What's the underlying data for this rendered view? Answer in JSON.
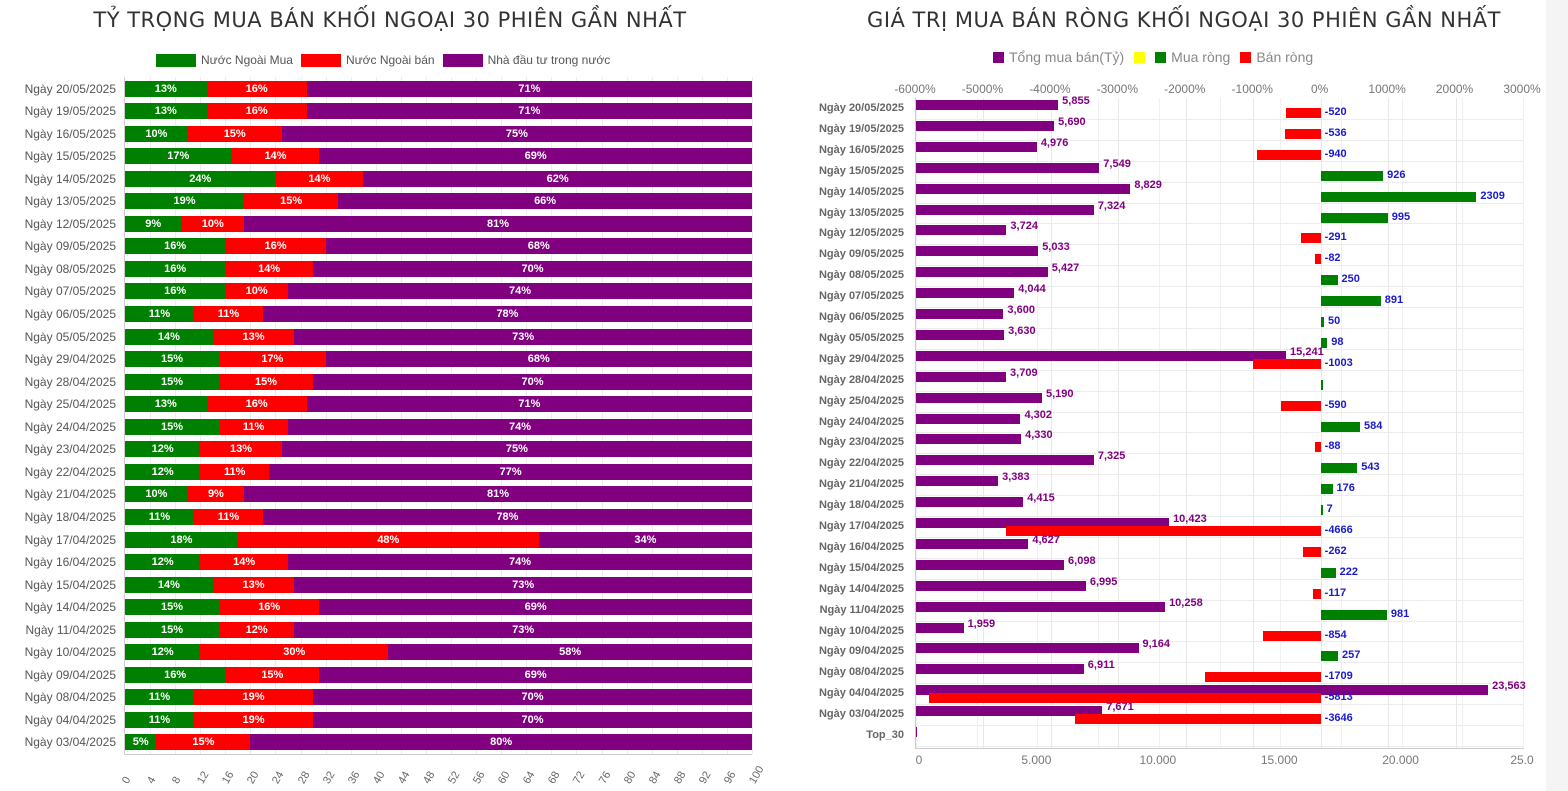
{
  "left_chart": {
    "title": "TỶ TRỌNG MUA BÁN KHỐI NGOẠI 30 PHIÊN GẦN NHẤT",
    "legend": [
      {
        "label": "Nước Ngoài Mua",
        "color": "#008000"
      },
      {
        "label": "Nước Ngoài bán",
        "color": "#ff0000"
      },
      {
        "label": "Nhà đầu tư trong nước",
        "color": "#800080"
      }
    ],
    "x_ticks": [
      "0",
      "4",
      "8",
      "12",
      "16",
      "20",
      "24",
      "28",
      "32",
      "36",
      "40",
      "44",
      "48",
      "52",
      "56",
      "60",
      "64",
      "68",
      "72",
      "76",
      "80",
      "84",
      "88",
      "92",
      "96",
      "100"
    ]
  },
  "right_chart": {
    "title": "GIÁ TRỊ MUA BÁN RÒNG KHỐI NGOẠI 30 PHIÊN GẦN NHẤT",
    "legend": [
      {
        "label": "Tổng mua bán(Tỷ)",
        "color": "#800080"
      },
      {
        "label": "",
        "color": "#ffff00"
      },
      {
        "label": "Mua ròng",
        "color": "#008000"
      },
      {
        "label": "Bán ròng",
        "color": "#ff0000"
      }
    ],
    "top_ticks": [
      "-6000%",
      "-5000%",
      "-4000%",
      "-3000%",
      "-2000%",
      "-1000%",
      "0%",
      "1000%",
      "2000%",
      "3000%"
    ],
    "bottom_ticks": [
      "0",
      "5.000",
      "10.000",
      "15.000",
      "20.000",
      "25.0"
    ],
    "extra_category": "Top_30"
  },
  "chart_data": [
    {
      "type": "bar",
      "orientation": "horizontal",
      "stacked": true,
      "title": "TỶ TRỌNG MUA BÁN KHỐI NGOẠI 30 PHIÊN GẦN NHẤT",
      "xlabel": "",
      "ylabel": "",
      "xlim": [
        0,
        100
      ],
      "legend_position": "top",
      "categories": [
        "Ngày 20/05/2025",
        "Ngày 19/05/2025",
        "Ngày 16/05/2025",
        "Ngày 15/05/2025",
        "Ngày 14/05/2025",
        "Ngày 13/05/2025",
        "Ngày 12/05/2025",
        "Ngày 09/05/2025",
        "Ngày 08/05/2025",
        "Ngày 07/05/2025",
        "Ngày 06/05/2025",
        "Ngày 05/05/2025",
        "Ngày 29/04/2025",
        "Ngày 28/04/2025",
        "Ngày 25/04/2025",
        "Ngày 24/04/2025",
        "Ngày 23/04/2025",
        "Ngày 22/04/2025",
        "Ngày 21/04/2025",
        "Ngày 18/04/2025",
        "Ngày 17/04/2025",
        "Ngày 16/04/2025",
        "Ngày 15/04/2025",
        "Ngày 14/04/2025",
        "Ngày 11/04/2025",
        "Ngày 10/04/2025",
        "Ngày 09/04/2025",
        "Ngày 08/04/2025",
        "Ngày 04/04/2025",
        "Ngày 03/04/2025"
      ],
      "series": [
        {
          "name": "Nước Ngoài Mua",
          "color": "#008000",
          "values": [
            13,
            13,
            10,
            17,
            24,
            19,
            9,
            16,
            16,
            16,
            11,
            14,
            15,
            15,
            13,
            15,
            12,
            12,
            10,
            11,
            18,
            12,
            14,
            15,
            15,
            12,
            16,
            11,
            11,
            5
          ]
        },
        {
          "name": "Nước Ngoài bán",
          "color": "#ff0000",
          "values": [
            16,
            16,
            15,
            14,
            14,
            15,
            10,
            16,
            14,
            10,
            11,
            13,
            17,
            15,
            16,
            11,
            13,
            11,
            9,
            11,
            48,
            14,
            13,
            16,
            12,
            30,
            15,
            19,
            19,
            15
          ]
        },
        {
          "name": "Nhà đầu tư trong nước",
          "color": "#800080",
          "values": [
            71,
            71,
            75,
            69,
            62,
            66,
            81,
            68,
            70,
            74,
            78,
            73,
            68,
            70,
            71,
            74,
            75,
            77,
            81,
            78,
            34,
            74,
            73,
            69,
            73,
            58,
            69,
            70,
            70,
            80
          ]
        }
      ]
    },
    {
      "type": "bar",
      "orientation": "horizontal",
      "title": "GIÁ TRỊ MUA BÁN RÒNG KHỐI NGOẠI 30 PHIÊN GẦN NHẤT",
      "xlabel": "",
      "ylabel": "",
      "xlim_bottom": [
        0,
        25000
      ],
      "xlim_top_percent": [
        -6000,
        3000
      ],
      "legend_position": "top",
      "categories": [
        "Ngày 20/05/2025",
        "Ngày 19/05/2025",
        "Ngày 16/05/2025",
        "Ngày 15/05/2025",
        "Ngày 14/05/2025",
        "Ngày 13/05/2025",
        "Ngày 12/05/2025",
        "Ngày 09/05/2025",
        "Ngày 08/05/2025",
        "Ngày 07/05/2025",
        "Ngày 06/05/2025",
        "Ngày 05/05/2025",
        "Ngày 29/04/2025",
        "Ngày 28/04/2025",
        "Ngày 25/04/2025",
        "Ngày 24/04/2025",
        "Ngày 23/04/2025",
        "Ngày 22/04/2025",
        "Ngày 21/04/2025",
        "Ngày 18/04/2025",
        "Ngày 17/04/2025",
        "Ngày 16/04/2025",
        "Ngày 15/04/2025",
        "Ngày 14/04/2025",
        "Ngày 11/04/2025",
        "Ngày 10/04/2025",
        "Ngày 09/04/2025",
        "Ngày 08/04/2025",
        "Ngày 04/04/2025",
        "Ngày 03/04/2025",
        "Top_30"
      ],
      "series": [
        {
          "name": "Tổng mua bán(Tỷ)",
          "color": "#800080",
          "values": [
            5855,
            5690,
            4976,
            7549,
            8829,
            7324,
            3724,
            5033,
            5427,
            4044,
            3600,
            3630,
            15241,
            3709,
            5190,
            4302,
            4330,
            7325,
            3383,
            4415,
            10423,
            4627,
            6098,
            6995,
            10258,
            1959,
            9164,
            6911,
            23563,
            7671,
            0
          ],
          "labels": [
            "5,855",
            "5,690",
            "4,976",
            "7,549",
            "8,829",
            "7,324",
            "3,724",
            "5,033",
            "5,427",
            "4,044",
            "3,600",
            "3,630",
            "15,241",
            "3,709",
            "5,190",
            "4,302",
            "4,330",
            "7,325",
            "3,383",
            "4,415",
            "10,423",
            "4,627",
            "6,098",
            "6,995",
            "10,258",
            "1,959",
            "9,164",
            "6,911",
            "23,563",
            "7,671",
            ""
          ]
        },
        {
          "name": "Ròng (Mua ròng / Bán ròng)",
          "values": [
            -520,
            -536,
            -940,
            926,
            2309,
            995,
            -291,
            -82,
            250,
            891,
            50,
            98,
            -1003,
            20,
            -590,
            584,
            -88,
            543,
            176,
            7,
            -4666,
            -262,
            222,
            -117,
            981,
            -854,
            257,
            -1709,
            -5813,
            -3646,
            null
          ],
          "labels": [
            "-520",
            "-536",
            "-940",
            "926",
            "2309",
            "995",
            "-291",
            "-82",
            "250",
            "891",
            "50",
            "98",
            "-1003",
            "",
            "-590",
            "584",
            "-88",
            "543",
            "176",
            "7",
            "-4666",
            "-262",
            "222",
            "-117",
            "981",
            "-854",
            "257",
            "-1709",
            "-5813",
            "-3646",
            ""
          ],
          "positive_color": "#008000",
          "negative_color": "#ff0000"
        }
      ]
    }
  ]
}
